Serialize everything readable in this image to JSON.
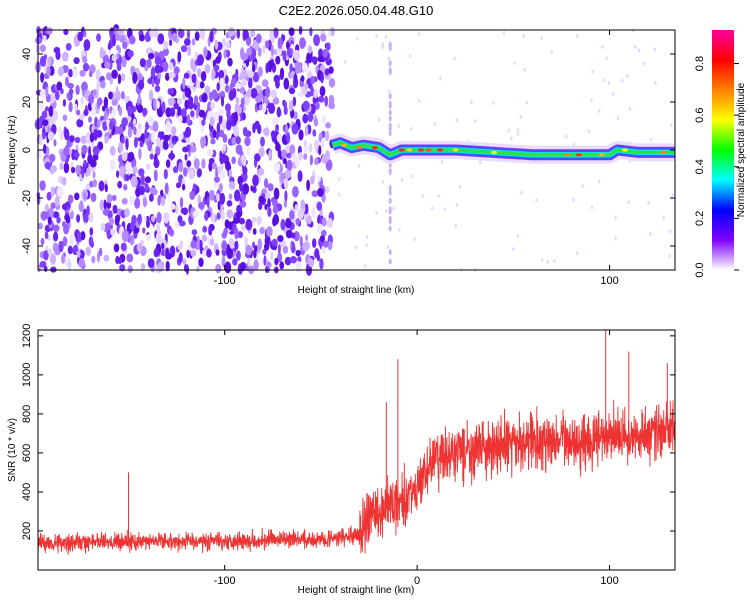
{
  "figure_title": "C2E2.2026.050.04.48.G10",
  "chart_data": [
    {
      "type": "heatmap",
      "name": "spectrogram",
      "xlabel": "Height of straight line (km)",
      "ylabel": "Frequency (Hz)",
      "xlim": [
        -197,
        134
      ],
      "ylim": [
        -50,
        50
      ],
      "x_ticks": [
        -100,
        100
      ],
      "y_ticks": [
        -40,
        -20,
        0,
        20,
        40
      ],
      "colorbar": {
        "label": "Normalized spectral amplitude",
        "range": [
          0,
          0.93
        ],
        "ticks": [
          "0.0",
          "0.2",
          "0.4",
          "0.6",
          "0.8"
        ],
        "colormap": [
          "#ffffff",
          "#7f00ff",
          "#0000ff",
          "#00ffff",
          "#00ff00",
          "#ffff00",
          "#ff8000",
          "#ff0000",
          "#ff00a0"
        ]
      },
      "noise_region_x": [
        -197,
        -44
      ],
      "signal_track": [
        {
          "x": -44,
          "y": 2
        },
        {
          "x": -40,
          "y": 3
        },
        {
          "x": -34,
          "y": 1
        },
        {
          "x": -28,
          "y": 2
        },
        {
          "x": -20,
          "y": 1
        },
        {
          "x": -14,
          "y": -2
        },
        {
          "x": -8,
          "y": 0
        },
        {
          "x": 0,
          "y": 0
        },
        {
          "x": 20,
          "y": 0
        },
        {
          "x": 40,
          "y": -1
        },
        {
          "x": 60,
          "y": -2
        },
        {
          "x": 80,
          "y": -2
        },
        {
          "x": 100,
          "y": -2
        },
        {
          "x": 104,
          "y": 0
        },
        {
          "x": 115,
          "y": -1
        },
        {
          "x": 134,
          "y": -1
        }
      ]
    },
    {
      "type": "line",
      "name": "snr",
      "xlabel": "Height of straight line (km)",
      "ylabel": "SNR (10 * v/v)",
      "xlim": [
        -197,
        134
      ],
      "ylim": [
        0,
        1230
      ],
      "x_ticks": [
        -100,
        0,
        100
      ],
      "y_ticks": [
        200,
        400,
        600,
        800,
        1000,
        1200
      ],
      "color": "#ee3333",
      "trend": [
        {
          "x": -197,
          "y": 140
        },
        {
          "x": -100,
          "y": 150
        },
        {
          "x": -45,
          "y": 160
        },
        {
          "x": -30,
          "y": 180
        },
        {
          "x": -25,
          "y": 280
        },
        {
          "x": -10,
          "y": 350
        },
        {
          "x": 0,
          "y": 420
        },
        {
          "x": 8,
          "y": 560
        },
        {
          "x": 30,
          "y": 620
        },
        {
          "x": 60,
          "y": 650
        },
        {
          "x": 100,
          "y": 680
        },
        {
          "x": 134,
          "y": 720
        }
      ],
      "spikes": [
        {
          "x": -150,
          "y": 500
        },
        {
          "x": -10,
          "y": 1080
        },
        {
          "x": -16,
          "y": 860
        },
        {
          "x": 98,
          "y": 1235
        },
        {
          "x": 110,
          "y": 1120
        },
        {
          "x": 130,
          "y": 1060
        }
      ]
    }
  ]
}
